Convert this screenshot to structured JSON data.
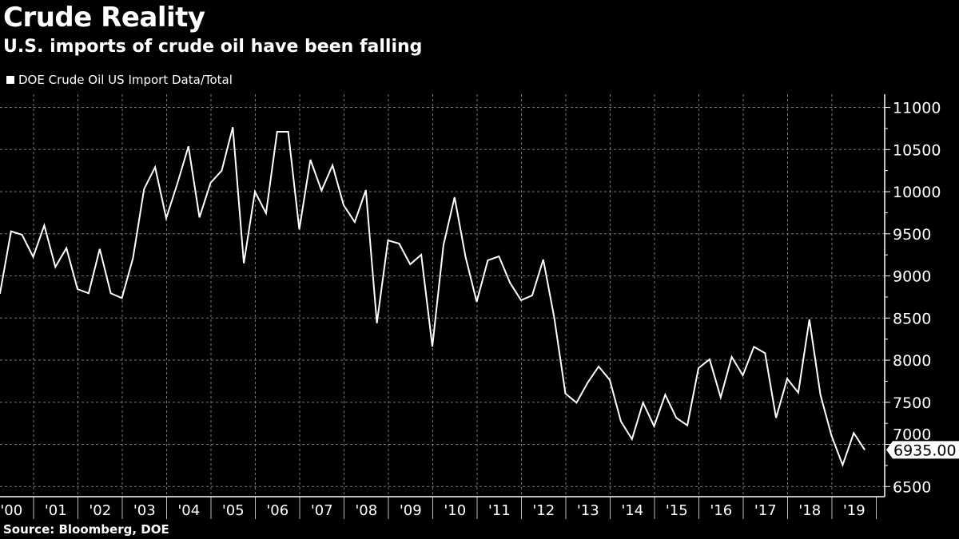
{
  "chart_data": {
    "type": "line",
    "title": "Crude Reality",
    "subtitle": "U.S. imports of crude oil have been falling",
    "source": "Source: Bloomberg, DOE",
    "legend": "top-left",
    "grid": true,
    "series": [
      {
        "name": "DOE Crude Oil US Import Data/Total",
        "color": "#ffffff",
        "last_value_label": "6935.00",
        "values": [
          8787,
          9529,
          9489,
          9226,
          9600,
          9107,
          9330,
          8844,
          8794,
          9321,
          8794,
          8737,
          9211,
          10032,
          10291,
          9685,
          10095,
          10538,
          9694,
          10105,
          10250,
          10765,
          9150,
          10000,
          9745,
          10711,
          10711,
          9552,
          10380,
          10013,
          10313,
          9839,
          9640,
          10019,
          8439,
          9422,
          9384,
          9138,
          9252,
          8162,
          9365,
          9934,
          9223,
          8692,
          9185,
          9233,
          8920,
          8711,
          8768,
          9195,
          8500,
          7603,
          7495,
          7732,
          7925,
          7766,
          7274,
          7062,
          7495,
          7217,
          7590,
          7315,
          7226,
          7906,
          8010,
          7558,
          8038,
          7820,
          8159,
          8083,
          7315,
          7780,
          7615,
          8484,
          7590,
          7103,
          6756,
          7135,
          6935
        ]
      }
    ],
    "x_start": "2000-Q1",
    "x_frequency": "quarterly",
    "x_tick_labels": [
      "'00",
      "'01",
      "'02",
      "'03",
      "'04",
      "'05",
      "'06",
      "'07",
      "'08",
      "'09",
      "'10",
      "'11",
      "'12",
      "'13",
      "'14",
      "'15",
      "'16",
      "'17",
      "'18",
      "'19"
    ],
    "y_tick_labels": [
      "6500",
      "7000",
      "7500",
      "8000",
      "8500",
      "9000",
      "9500",
      "10000",
      "10500",
      "11000"
    ],
    "y_ticks": [
      6500,
      7000,
      7500,
      8000,
      8500,
      9000,
      9500,
      10000,
      10500,
      11000
    ],
    "ylim": [
      6400,
      11150
    ],
    "y_axis_side": "right",
    "background": "#000000"
  }
}
